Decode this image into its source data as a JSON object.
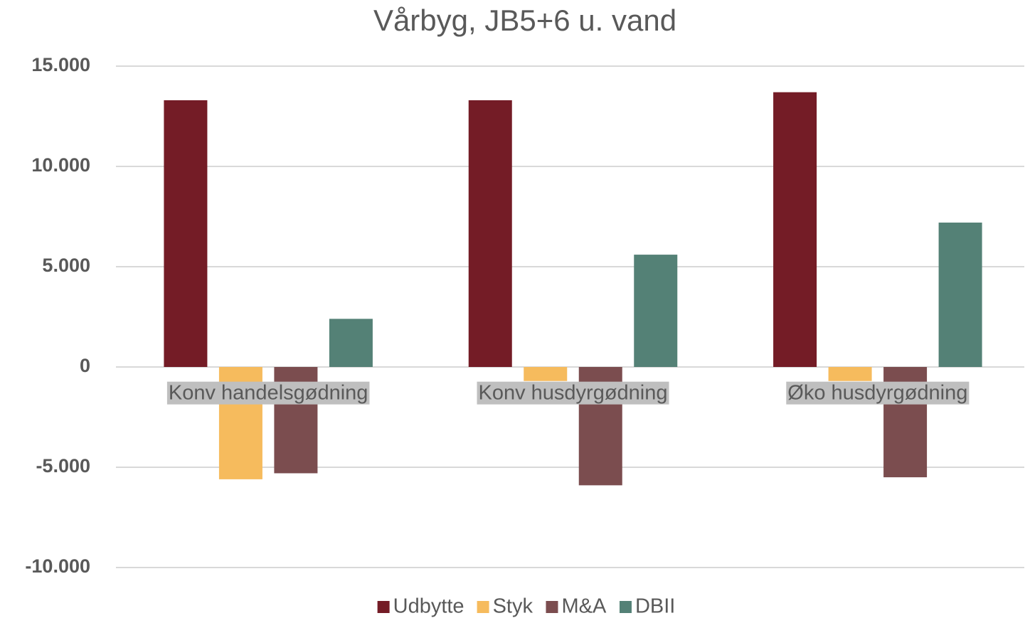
{
  "chart_data": {
    "type": "bar",
    "title": "Vårbyg, JB5+6 u. vand",
    "categories": [
      "Konv handelsgødning",
      "Konv husdyrgødning",
      "Øko husdyrgødning"
    ],
    "series": [
      {
        "name": "Udbytte",
        "color": "#741c26",
        "values": [
          13300,
          13300,
          13700
        ]
      },
      {
        "name": "Styk",
        "color": "#f6bb5d",
        "values": [
          -5600,
          -700,
          -700
        ]
      },
      {
        "name": "M&A",
        "color": "#7b4d4f",
        "values": [
          -5300,
          -5900,
          -5500
        ]
      },
      {
        "name": "DBII",
        "color": "#548176",
        "values": [
          2400,
          5600,
          7200
        ]
      }
    ],
    "ylim": [
      -10000,
      15000
    ],
    "yticks": [
      {
        "value": -10000,
        "label": "-10.000"
      },
      {
        "value": -5000,
        "label": "-5.000"
      },
      0,
      {
        "value": 5000,
        "label": "5.000"
      },
      {
        "value": 10000,
        "label": "10.000"
      },
      {
        "value": 15000,
        "label": "15.000"
      }
    ],
    "grid": true,
    "legend": "bottom"
  }
}
